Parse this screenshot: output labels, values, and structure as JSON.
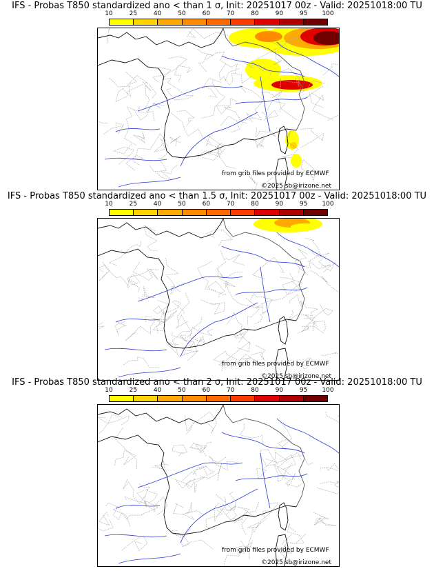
{
  "colorbar": {
    "ticks": [
      "10",
      "25",
      "40",
      "50",
      "60",
      "70",
      "80",
      "90",
      "95",
      "100"
    ],
    "colors": [
      "#ffff00",
      "#ffd400",
      "#ffaa00",
      "#ff8c00",
      "#ff6a00",
      "#ff3c00",
      "#e00000",
      "#b00000",
      "#700000"
    ]
  },
  "credits": {
    "source": "from grib files provided by ECMWF",
    "copyright": "©2025 sb@irizone.net"
  },
  "panels": [
    {
      "title": "IFS - Probas T850  standardized ano < than 1 σ, Init: 20251017 00z - Valid: 20251018:00 TU"
    },
    {
      "title": "IFS - Probas T850  standardized ano < than 1.5 σ, Init: 20251017 00z - Valid: 20251018:00 TU"
    },
    {
      "title": "IFS - Probas T850  standardized ano < than 2 σ, Init: 20251017 00z - Valid: 20251018:00 TU"
    }
  ]
}
